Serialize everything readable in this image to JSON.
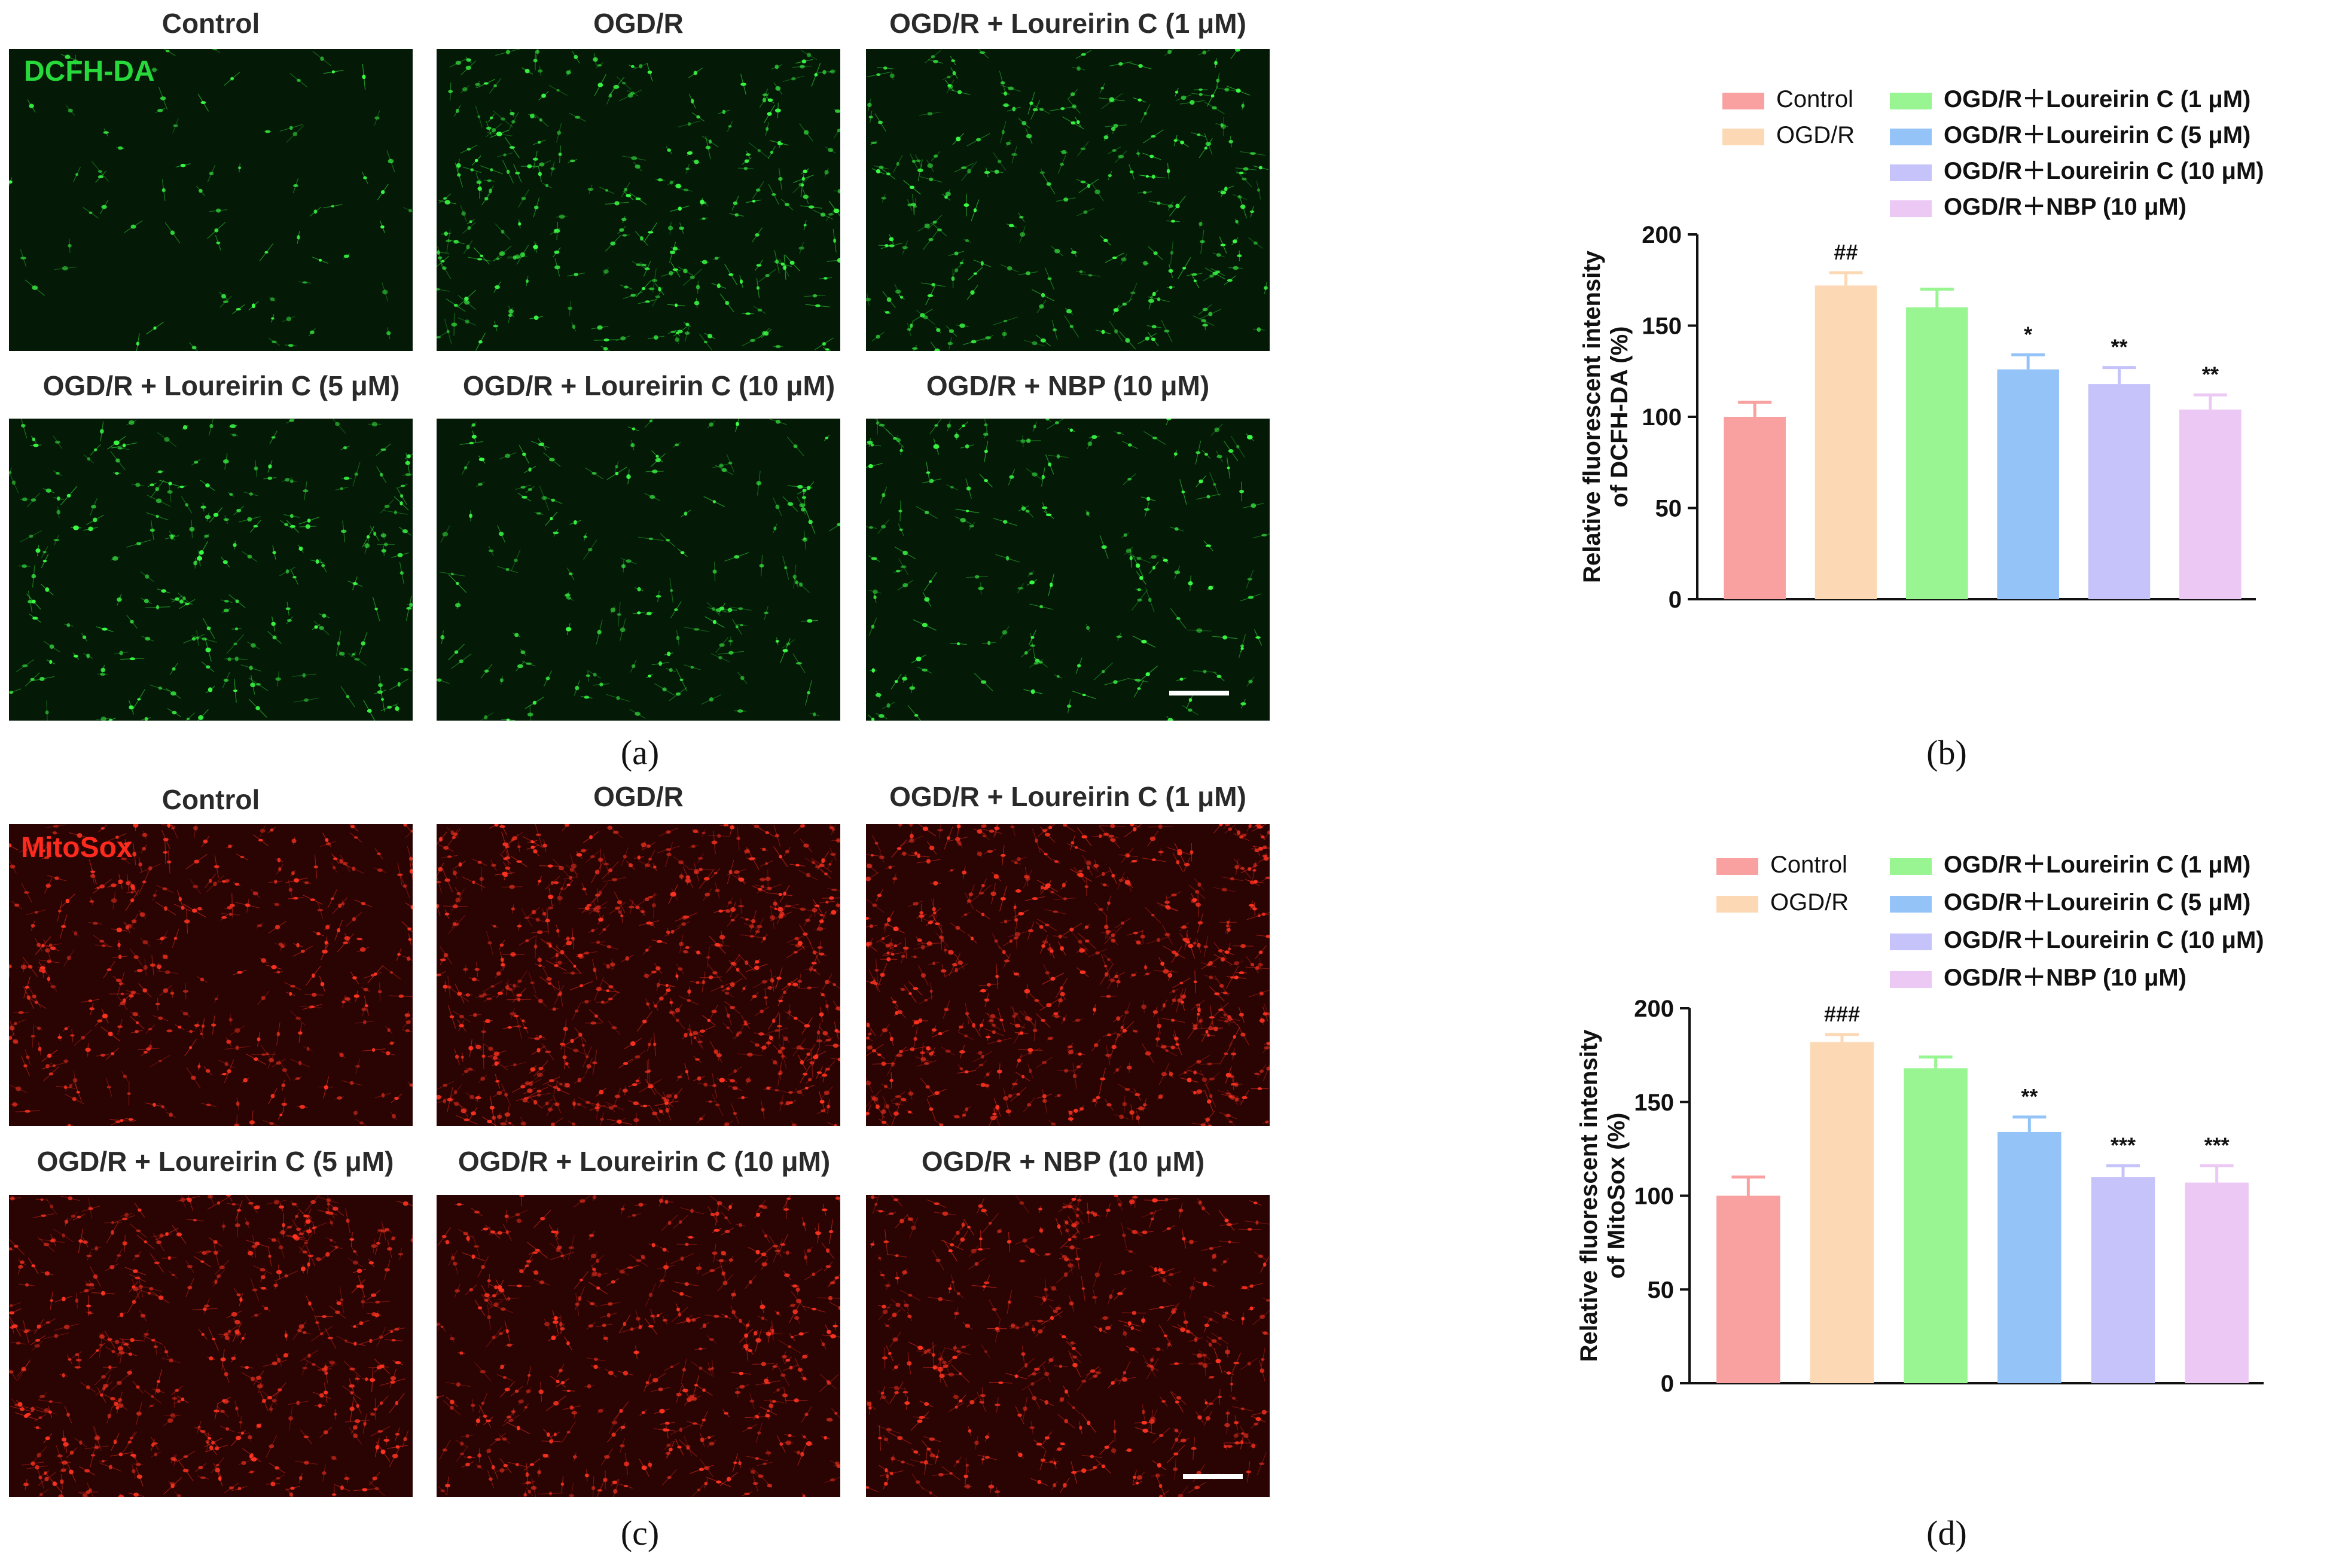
{
  "panels": {
    "a": {
      "stain": "DCFH-DA",
      "stain_color": "#27d93a",
      "cell_color": "#3cff46",
      "background_color": "#041a06",
      "titles": [
        "Control",
        "OGD/R",
        "OGD/R + Loureirin C (1 μM)",
        "OGD/R + Loureirin C (5 μM)",
        "OGD/R + Loureirin C (10 μM)",
        "OGD/R + NBP (10 μM)"
      ]
    },
    "c": {
      "stain": "MitoSox",
      "stain_color": "#ff2a1e",
      "cell_color": "#ff3320",
      "background_color": "#2a0303",
      "titles": [
        "Control",
        "OGD/R",
        "OGD/R + Loureirin C (1 μM)",
        "OGD/R + Loureirin C (5 μM)",
        "OGD/R + Loureirin C (10 μM)",
        "OGD/R + NBP (10 μM)"
      ]
    }
  },
  "sub_labels": {
    "a": "(a)",
    "b": "(b)",
    "c": "(c)",
    "d": "(d)"
  },
  "colors": {
    "Control": "#f9a0a0",
    "OGD/R": "#fcd9b4",
    "OGD/R+Loureirin C (1 μM)": "#98f591",
    "OGD/R+Loureirin C (5 μM)": "#94c3f7",
    "OGD/R+Loureirin C (10 μM)": "#c5c3fa",
    "OGD/R+NBP (10 μM)": "#ecc8f5"
  },
  "chart_data": [
    {
      "type": "bar",
      "panel": "b",
      "categories": [
        "Control",
        "OGD/R",
        "OGD/R+Loureirin C (1 μM)",
        "OGD/R+Loureirin C (5 μM)",
        "OGD/R+Loureirin C (10 μM)",
        "OGD/R+NBP (10 μM)"
      ],
      "values": [
        100,
        172,
        160,
        126,
        118,
        104
      ],
      "errors": [
        8,
        7,
        10,
        8,
        9,
        8
      ],
      "annotations": [
        "",
        "##",
        "",
        "*",
        "**",
        "**"
      ],
      "ylabel": "Relative fluorescent intensity of DCFH-DA (%)",
      "ylabel_lines": [
        "Relative fluorescent intensity",
        "of DCFH-DA (%)"
      ],
      "ylim": [
        0,
        200
      ],
      "yticks": [
        0,
        50,
        100,
        150,
        200
      ],
      "legend": [
        "Control",
        "OGD/R",
        "OGD/R+Loureirin C (1 μM)",
        "OGD/R+Loureirin C (5 μM)",
        "OGD/R+Loureirin C (10 μM)",
        "OGD/R+NBP (10 μM)"
      ],
      "legend_placement": "top"
    },
    {
      "type": "bar",
      "panel": "d",
      "categories": [
        "Control",
        "OGD/R",
        "OGD/R+Loureirin C (1 μM)",
        "OGD/R+Loureirin C (5 μM)",
        "OGD/R+Loureirin C (10 μM)",
        "OGD/R+NBP (10 μM)"
      ],
      "values": [
        100,
        182,
        168,
        134,
        110,
        107
      ],
      "errors": [
        10,
        4,
        6,
        8,
        6,
        9
      ],
      "annotations": [
        "",
        "###",
        "",
        "**",
        "***",
        "***"
      ],
      "ylabel": "Relative fluorescent intensity of MitoSox (%)",
      "ylabel_lines": [
        "Relative fluorescent intensity",
        "of MitoSox (%)"
      ],
      "ylim": [
        0,
        200
      ],
      "yticks": [
        0,
        50,
        100,
        150,
        200
      ],
      "legend": [
        "Control",
        "OGD/R",
        "OGD/R+Loureirin C (1 μM)",
        "OGD/R+Loureirin C (5 μM)",
        "OGD/R+Loureirin C (10 μM)",
        "OGD/R+NBP (10 μM)"
      ],
      "legend_placement": "top"
    }
  ]
}
